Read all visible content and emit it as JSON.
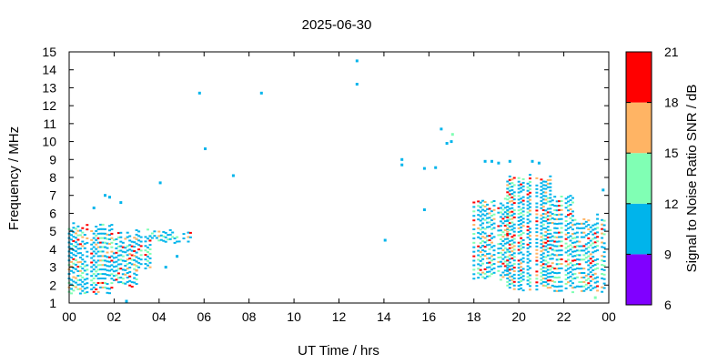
{
  "chart_data": {
    "type": "heatmap",
    "title": "2025-06-30",
    "xlabel": "UT Time / hrs",
    "ylabel": "Frequency / MHz",
    "colorbar_label": "Signal to Noise Ratio SNR / dB",
    "xlim": [
      0,
      24
    ],
    "ylim": [
      1,
      15
    ],
    "x_ticks": [
      "00",
      "02",
      "04",
      "06",
      "08",
      "10",
      "12",
      "14",
      "16",
      "18",
      "20",
      "22",
      "00"
    ],
    "y_ticks": [
      "1",
      "2",
      "3",
      "4",
      "5",
      "6",
      "7",
      "8",
      "9",
      "10",
      "11",
      "12",
      "13",
      "14",
      "15"
    ],
    "colorbar_ticks": [
      "6",
      "9",
      "12",
      "15",
      "18",
      "21"
    ],
    "colorbar_bands": [
      {
        "min": 6,
        "max": 9,
        "color": "#8000ff"
      },
      {
        "min": 9,
        "max": 12,
        "color": "#00b4eb"
      },
      {
        "min": 12,
        "max": 15,
        "color": "#80ffb4"
      },
      {
        "min": 15,
        "max": 18,
        "color": "#ffb464"
      },
      {
        "min": 18,
        "max": 21,
        "color": "#ff0000"
      }
    ],
    "grid": false,
    "clusters": [
      {
        "t_start": 0.0,
        "t_end": 1.9,
        "f_low": 1.5,
        "f_high": 5.6,
        "step": 0.25
      },
      {
        "t_start": 2.0,
        "t_end": 3.0,
        "f_low": 1.9,
        "f_high": 5.0,
        "step": 0.25
      },
      {
        "t_start": 3.0,
        "t_end": 3.6,
        "f_low": 2.8,
        "f_high": 5.2,
        "step": 0.25
      },
      {
        "t_start": 3.6,
        "t_end": 5.4,
        "f_low": 4.3,
        "f_high": 5.2,
        "step": 0.25
      },
      {
        "t_start": 18.0,
        "t_end": 19.5,
        "f_low": 2.3,
        "f_high": 6.9,
        "step": 0.25
      },
      {
        "t_start": 19.5,
        "t_end": 21.5,
        "f_low": 1.7,
        "f_high": 8.2,
        "step": 0.2
      },
      {
        "t_start": 21.5,
        "t_end": 22.5,
        "f_low": 1.6,
        "f_high": 7.2,
        "step": 0.25
      },
      {
        "t_start": 22.5,
        "t_end": 23.8,
        "f_low": 1.6,
        "f_high": 6.0,
        "step": 0.25
      }
    ],
    "isolated_points": [
      {
        "t": 5.8,
        "f": 12.7,
        "snr": 10
      },
      {
        "t": 6.05,
        "f": 9.6,
        "snr": 10
      },
      {
        "t": 7.3,
        "f": 8.1,
        "snr": 10
      },
      {
        "t": 8.55,
        "f": 12.7,
        "snr": 10
      },
      {
        "t": 4.05,
        "f": 7.7,
        "snr": 10
      },
      {
        "t": 4.3,
        "f": 3.0,
        "snr": 10
      },
      {
        "t": 4.8,
        "f": 3.6,
        "snr": 10
      },
      {
        "t": 1.1,
        "f": 6.3,
        "snr": 10
      },
      {
        "t": 1.6,
        "f": 7.0,
        "snr": 10
      },
      {
        "t": 1.8,
        "f": 6.9,
        "snr": 10
      },
      {
        "t": 2.3,
        "f": 6.6,
        "snr": 10
      },
      {
        "t": 2.55,
        "f": 1.1,
        "snr": 10
      },
      {
        "t": 12.8,
        "f": 14.5,
        "snr": 10
      },
      {
        "t": 12.8,
        "f": 13.2,
        "snr": 10
      },
      {
        "t": 14.05,
        "f": 4.5,
        "snr": 10
      },
      {
        "t": 14.8,
        "f": 8.7,
        "snr": 10
      },
      {
        "t": 14.8,
        "f": 9.0,
        "snr": 10
      },
      {
        "t": 15.8,
        "f": 8.5,
        "snr": 10
      },
      {
        "t": 15.8,
        "f": 6.2,
        "snr": 10
      },
      {
        "t": 16.3,
        "f": 8.55,
        "snr": 10
      },
      {
        "t": 16.55,
        "f": 10.7,
        "snr": 10
      },
      {
        "t": 16.8,
        "f": 9.9,
        "snr": 10
      },
      {
        "t": 17.0,
        "f": 10.0,
        "snr": 10
      },
      {
        "t": 17.05,
        "f": 10.4,
        "snr": 13
      },
      {
        "t": 18.5,
        "f": 8.9,
        "snr": 10
      },
      {
        "t": 18.8,
        "f": 8.9,
        "snr": 10
      },
      {
        "t": 19.1,
        "f": 8.8,
        "snr": 10
      },
      {
        "t": 19.6,
        "f": 8.9,
        "snr": 10
      },
      {
        "t": 20.6,
        "f": 8.9,
        "snr": 10
      },
      {
        "t": 20.9,
        "f": 8.8,
        "snr": 10
      },
      {
        "t": 23.75,
        "f": 7.3,
        "snr": 10
      },
      {
        "t": 23.4,
        "f": 1.3,
        "snr": 13
      }
    ]
  }
}
